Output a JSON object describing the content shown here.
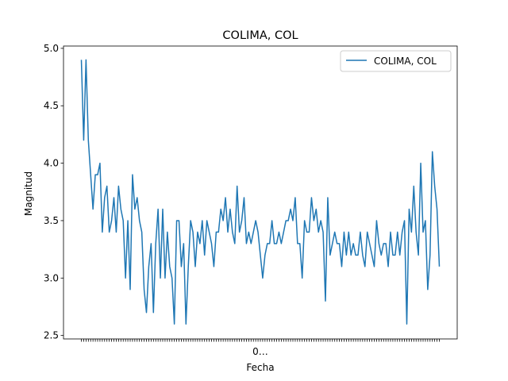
{
  "chart_data": {
    "type": "line",
    "title": "COLIMA, COL",
    "xlabel": "Fecha",
    "ylabel": "Magnitud",
    "ylim": [
      2.47,
      5.02
    ],
    "yticks": [
      "2.5",
      "3.0",
      "3.5",
      "4.0",
      "4.5",
      "5.0"
    ],
    "xticks_text": "0…",
    "grid": false,
    "legend_position": "top-right",
    "series": [
      {
        "name": "COLIMA, COL",
        "color": "#1f77b4",
        "values": [
          4.9,
          4.2,
          4.9,
          4.2,
          3.9,
          3.6,
          3.9,
          3.9,
          4.0,
          3.4,
          3.7,
          3.8,
          3.4,
          3.5,
          3.7,
          3.4,
          3.8,
          3.6,
          3.5,
          3.0,
          3.5,
          2.9,
          3.9,
          3.6,
          3.7,
          3.5,
          3.4,
          2.9,
          2.7,
          3.1,
          3.3,
          2.7,
          3.3,
          3.6,
          3.0,
          3.6,
          3.0,
          3.4,
          3.1,
          3.0,
          2.6,
          3.5,
          3.5,
          3.1,
          3.3,
          2.6,
          3.1,
          3.5,
          3.4,
          3.1,
          3.4,
          3.3,
          3.5,
          3.2,
          3.5,
          3.4,
          3.3,
          3.1,
          3.4,
          3.4,
          3.6,
          3.5,
          3.7,
          3.4,
          3.6,
          3.4,
          3.3,
          3.8,
          3.4,
          3.5,
          3.7,
          3.3,
          3.4,
          3.3,
          3.4,
          3.5,
          3.4,
          3.2,
          3.0,
          3.2,
          3.3,
          3.3,
          3.5,
          3.3,
          3.3,
          3.4,
          3.3,
          3.4,
          3.5,
          3.5,
          3.6,
          3.5,
          3.7,
          3.3,
          3.3,
          3.0,
          3.5,
          3.4,
          3.4,
          3.7,
          3.5,
          3.6,
          3.4,
          3.5,
          3.4,
          2.8,
          3.7,
          3.2,
          3.3,
          3.4,
          3.3,
          3.3,
          3.1,
          3.4,
          3.2,
          3.4,
          3.2,
          3.3,
          3.2,
          3.2,
          3.4,
          3.2,
          3.1,
          3.4,
          3.3,
          3.2,
          3.1,
          3.5,
          3.3,
          3.2,
          3.3,
          3.3,
          3.1,
          3.4,
          3.2,
          3.2,
          3.4,
          3.2,
          3.4,
          3.5,
          2.6,
          3.6,
          3.4,
          3.8,
          3.4,
          3.2,
          4.0,
          3.4,
          3.5,
          2.9,
          3.2,
          4.1,
          3.8,
          3.6,
          3.1
        ]
      }
    ]
  }
}
